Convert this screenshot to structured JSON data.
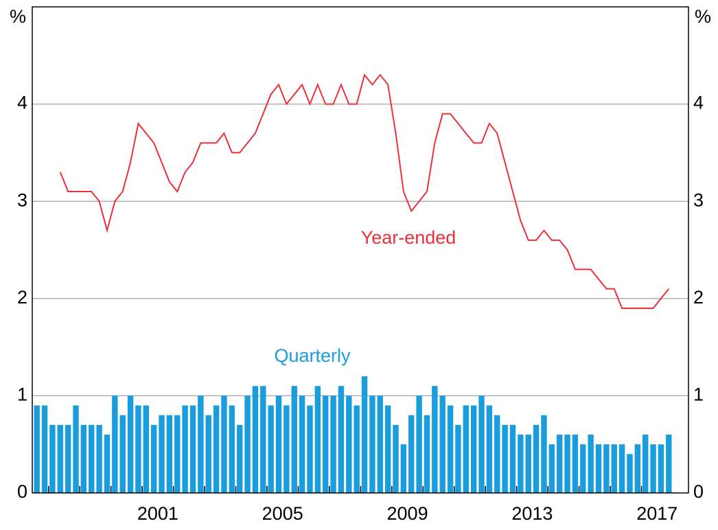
{
  "chart_data": {
    "type": "bar",
    "y_label": "%",
    "y2_label": "%",
    "categories": [
      null,
      null,
      null,
      null,
      null,
      null,
      null,
      null,
      null,
      null,
      null,
      null,
      null,
      null,
      null,
      "2001",
      null,
      null,
      null,
      null,
      null,
      null,
      null,
      null,
      null,
      null,
      null,
      null,
      null,
      null,
      null,
      "2005",
      null,
      null,
      null,
      null,
      null,
      null,
      null,
      null,
      null,
      null,
      null,
      null,
      null,
      null,
      null,
      "2009",
      null,
      null,
      null,
      null,
      null,
      null,
      null,
      null,
      null,
      null,
      null,
      null,
      null,
      null,
      null,
      "2013",
      null,
      null,
      null,
      null,
      null,
      null,
      null,
      null,
      null,
      null,
      null,
      null,
      null,
      null,
      null,
      "2017",
      null,
      null
    ],
    "series": [
      {
        "name": "Quarterly",
        "type": "bar",
        "color": "#1a9ddc",
        "values": [
          0.9,
          0.9,
          0.7,
          0.7,
          0.7,
          0.9,
          0.7,
          0.7,
          0.7,
          0.6,
          1.0,
          0.8,
          1.0,
          0.9,
          0.9,
          0.7,
          0.8,
          0.8,
          0.8,
          0.9,
          0.9,
          1.0,
          0.8,
          0.9,
          1.0,
          0.9,
          0.7,
          1.0,
          1.1,
          1.1,
          0.9,
          1.0,
          0.9,
          1.1,
          1.0,
          0.9,
          1.1,
          1.0,
          1.0,
          1.1,
          1.0,
          0.9,
          1.2,
          1.0,
          1.0,
          0.9,
          0.7,
          0.5,
          0.8,
          1.0,
          0.8,
          1.1,
          1.0,
          0.9,
          0.7,
          0.9,
          0.9,
          1.0,
          0.9,
          0.8,
          0.7,
          0.7,
          0.6,
          0.6,
          0.7,
          0.8,
          0.5,
          0.6,
          0.6,
          0.6,
          0.5,
          0.6,
          0.5,
          0.5,
          0.5,
          0.5,
          0.4,
          0.5,
          0.6,
          0.5,
          0.5,
          0.6
        ]
      },
      {
        "name": "Year-ended",
        "type": "line",
        "color": "#ee2f3a",
        "values": [
          null,
          null,
          null,
          3.3,
          3.1,
          3.1,
          3.1,
          3.1,
          3.0,
          2.7,
          3.0,
          3.1,
          3.4,
          3.8,
          3.7,
          3.6,
          3.4,
          3.2,
          3.1,
          3.3,
          3.4,
          3.6,
          3.6,
          3.6,
          3.7,
          3.5,
          3.5,
          3.6,
          3.7,
          3.9,
          4.1,
          4.2,
          4.0,
          4.1,
          4.2,
          4.0,
          4.2,
          4.0,
          4.0,
          4.2,
          4.0,
          4.0,
          4.3,
          4.2,
          4.3,
          4.2,
          3.7,
          3.1,
          2.9,
          3.0,
          3.1,
          3.6,
          3.9,
          3.9,
          3.8,
          3.7,
          3.6,
          3.6,
          3.8,
          3.7,
          3.4,
          3.1,
          2.8,
          2.6,
          2.6,
          2.7,
          2.6,
          2.6,
          2.5,
          2.3,
          2.3,
          2.3,
          2.2,
          2.1,
          2.1,
          1.9,
          1.9,
          1.9,
          1.9,
          1.9,
          2.0,
          2.1
        ]
      }
    ],
    "ylim": [
      0,
      5
    ],
    "yticks": [
      0,
      1,
      2,
      3,
      4
    ],
    "y2lim": [
      0,
      5
    ],
    "y2ticks": [
      0,
      1,
      2,
      3,
      4
    ],
    "grid": true
  }
}
